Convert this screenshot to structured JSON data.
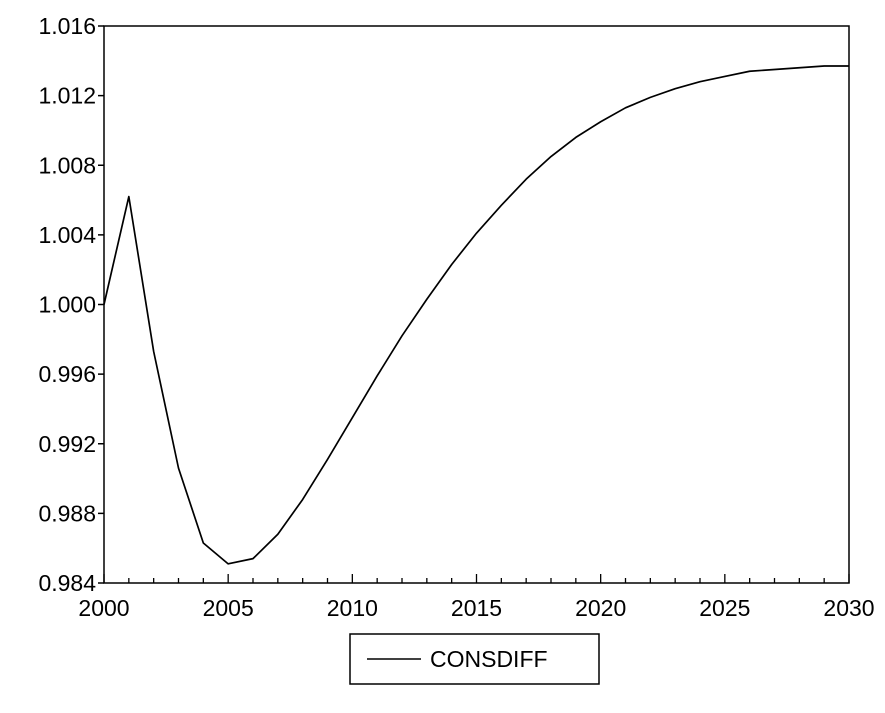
{
  "chart_data": {
    "type": "line",
    "title": "",
    "xlabel": "",
    "ylabel": "",
    "xlim": [
      2000,
      2030
    ],
    "ylim": [
      0.984,
      1.016
    ],
    "x_ticks": [
      "2000",
      "2005",
      "2010",
      "2015",
      "2020",
      "2025",
      "2030"
    ],
    "y_ticks": [
      "1.016",
      "1.012",
      "1.008",
      "1.004",
      "1.000",
      "0.996",
      "0.992",
      "0.988",
      "0.984"
    ],
    "grid": false,
    "legend_position": "bottom-center",
    "series": [
      {
        "name": "CONSDIFF",
        "color": "#000000",
        "x": [
          2000,
          2001,
          2002,
          2003,
          2004,
          2005,
          2006,
          2007,
          2008,
          2009,
          2010,
          2011,
          2012,
          2013,
          2014,
          2015,
          2016,
          2017,
          2018,
          2019,
          2020,
          2021,
          2022,
          2023,
          2024,
          2025,
          2026,
          2027,
          2028,
          2029,
          2030
        ],
        "y": [
          1.0,
          1.0062,
          0.9973,
          0.9906,
          0.9863,
          0.9851,
          0.9854,
          0.9868,
          0.9888,
          0.9911,
          0.9935,
          0.9959,
          0.9982,
          1.0003,
          1.0023,
          1.0041,
          1.0057,
          1.0072,
          1.0085,
          1.0096,
          1.0105,
          1.0113,
          1.0119,
          1.0124,
          1.0128,
          1.0131,
          1.0134,
          1.0135,
          1.0136,
          1.0137,
          1.0137
        ]
      }
    ]
  }
}
